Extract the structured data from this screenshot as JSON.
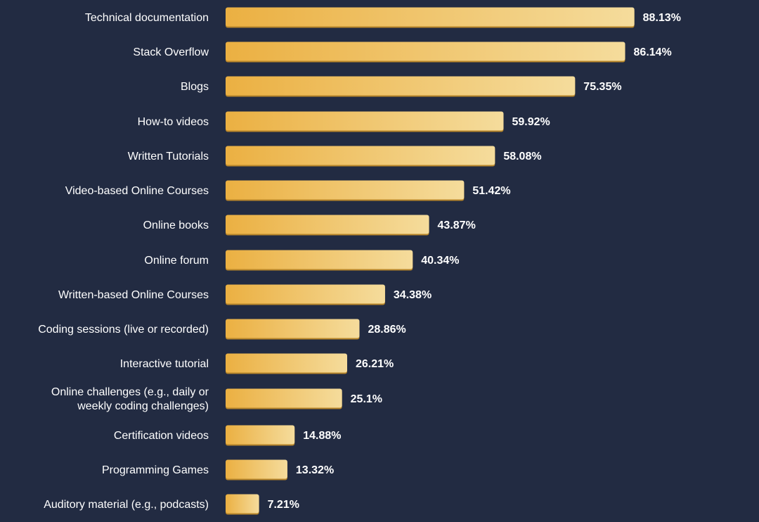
{
  "chart_data": {
    "type": "bar",
    "orientation": "horizontal",
    "categories": [
      "Technical documentation",
      "Stack Overflow",
      "Blogs",
      "How-to videos",
      "Written Tutorials",
      "Video-based Online Courses",
      "Online books",
      "Online forum",
      "Written-based Online Courses",
      "Coding sessions (live or recorded)",
      "Interactive tutorial",
      "Online challenges (e.g., daily or weekly coding challenges)",
      "Certification videos",
      "Programming Games",
      "Auditory material (e.g., podcasts)"
    ],
    "values": [
      88.13,
      86.14,
      75.35,
      59.92,
      58.08,
      51.42,
      43.87,
      40.34,
      34.38,
      28.86,
      26.21,
      25.1,
      14.88,
      13.32,
      7.21
    ],
    "value_labels": [
      "88.13%",
      "86.14%",
      "75.35%",
      "59.92%",
      "58.08%",
      "51.42%",
      "43.87%",
      "40.34%",
      "34.38%",
      "28.86%",
      "26.21%",
      "25.1%",
      "14.88%",
      "13.32%",
      "7.21%"
    ],
    "xlim": [
      0,
      100
    ],
    "grid": false,
    "colors": {
      "background": "#222b42",
      "bar_start": "#ebb042",
      "bar_end": "#f5dc9c",
      "bar_edge": "#b8862a",
      "text": "#ffffff"
    }
  }
}
